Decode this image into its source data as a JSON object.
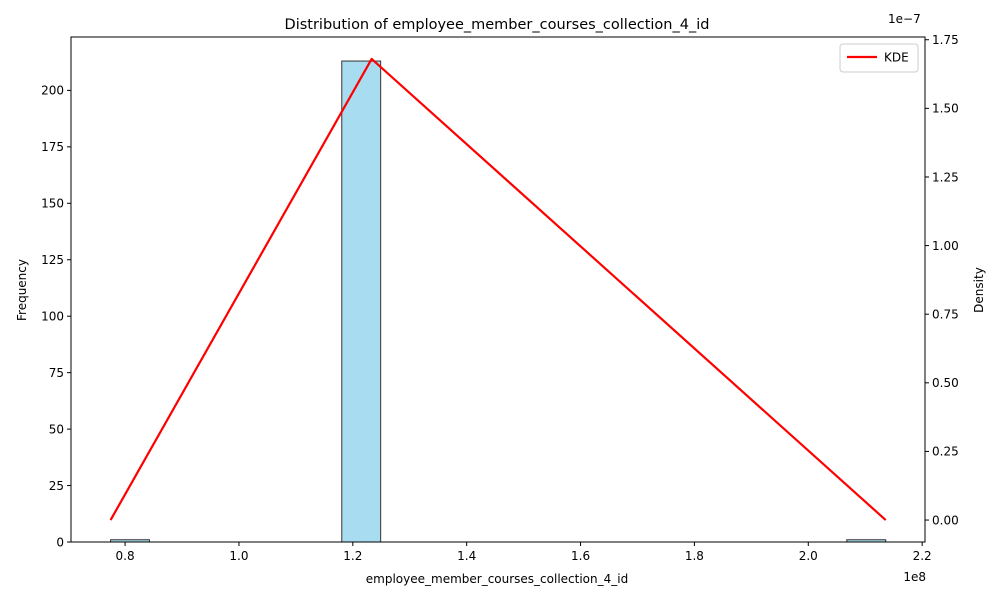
{
  "chart_data": {
    "type": "bar",
    "title": "Distribution of employee_member_courses_collection_4_id",
    "xlabel": "employee_member_courses_collection_4_id",
    "ylabel": "Frequency",
    "y2label": "Density",
    "x_offset_label": "1e8",
    "y2_offset_label": "1e−7",
    "xlim": [
      0.705,
      2.205
    ],
    "ylim": [
      0,
      223.65
    ],
    "y2lim": [
      -0.08,
      1.76
    ],
    "x_ticks": [
      0.8,
      1.0,
      1.2,
      1.4,
      1.6,
      1.8,
      2.0,
      2.2
    ],
    "x_tick_labels": [
      "0.8",
      "1.0",
      "1.2",
      "1.4",
      "1.6",
      "1.8",
      "2.0",
      "2.2"
    ],
    "y_ticks": [
      0,
      25,
      50,
      75,
      100,
      125,
      150,
      175,
      200
    ],
    "y_tick_labels": [
      "0",
      "25",
      "50",
      "75",
      "100",
      "125",
      "150",
      "175",
      "200"
    ],
    "y2_ticks": [
      0,
      0.25,
      0.5,
      0.75,
      1.0,
      1.25,
      1.5,
      1.75
    ],
    "y2_tick_labels": [
      "0.00",
      "0.25",
      "0.50",
      "0.75",
      "1.00",
      "1.25",
      "1.50",
      "1.75"
    ],
    "bars": [
      {
        "x0": 0.7745,
        "x1": 0.8428,
        "value": 1
      },
      {
        "x0": 1.1806,
        "x1": 1.2489,
        "value": 213
      },
      {
        "x0": 2.0677,
        "x1": 2.136,
        "value": 1
      }
    ],
    "kde": {
      "name": "KDE",
      "x": [
        0.7745,
        1.2331,
        2.136
      ],
      "y": [
        0.0,
        1.68,
        0.0
      ]
    },
    "legend_position": "top-right",
    "grid": false,
    "colors": {
      "bar_fill": "#87ceeb",
      "bar_edge": "#333333",
      "kde_line": "#ff0000"
    }
  }
}
